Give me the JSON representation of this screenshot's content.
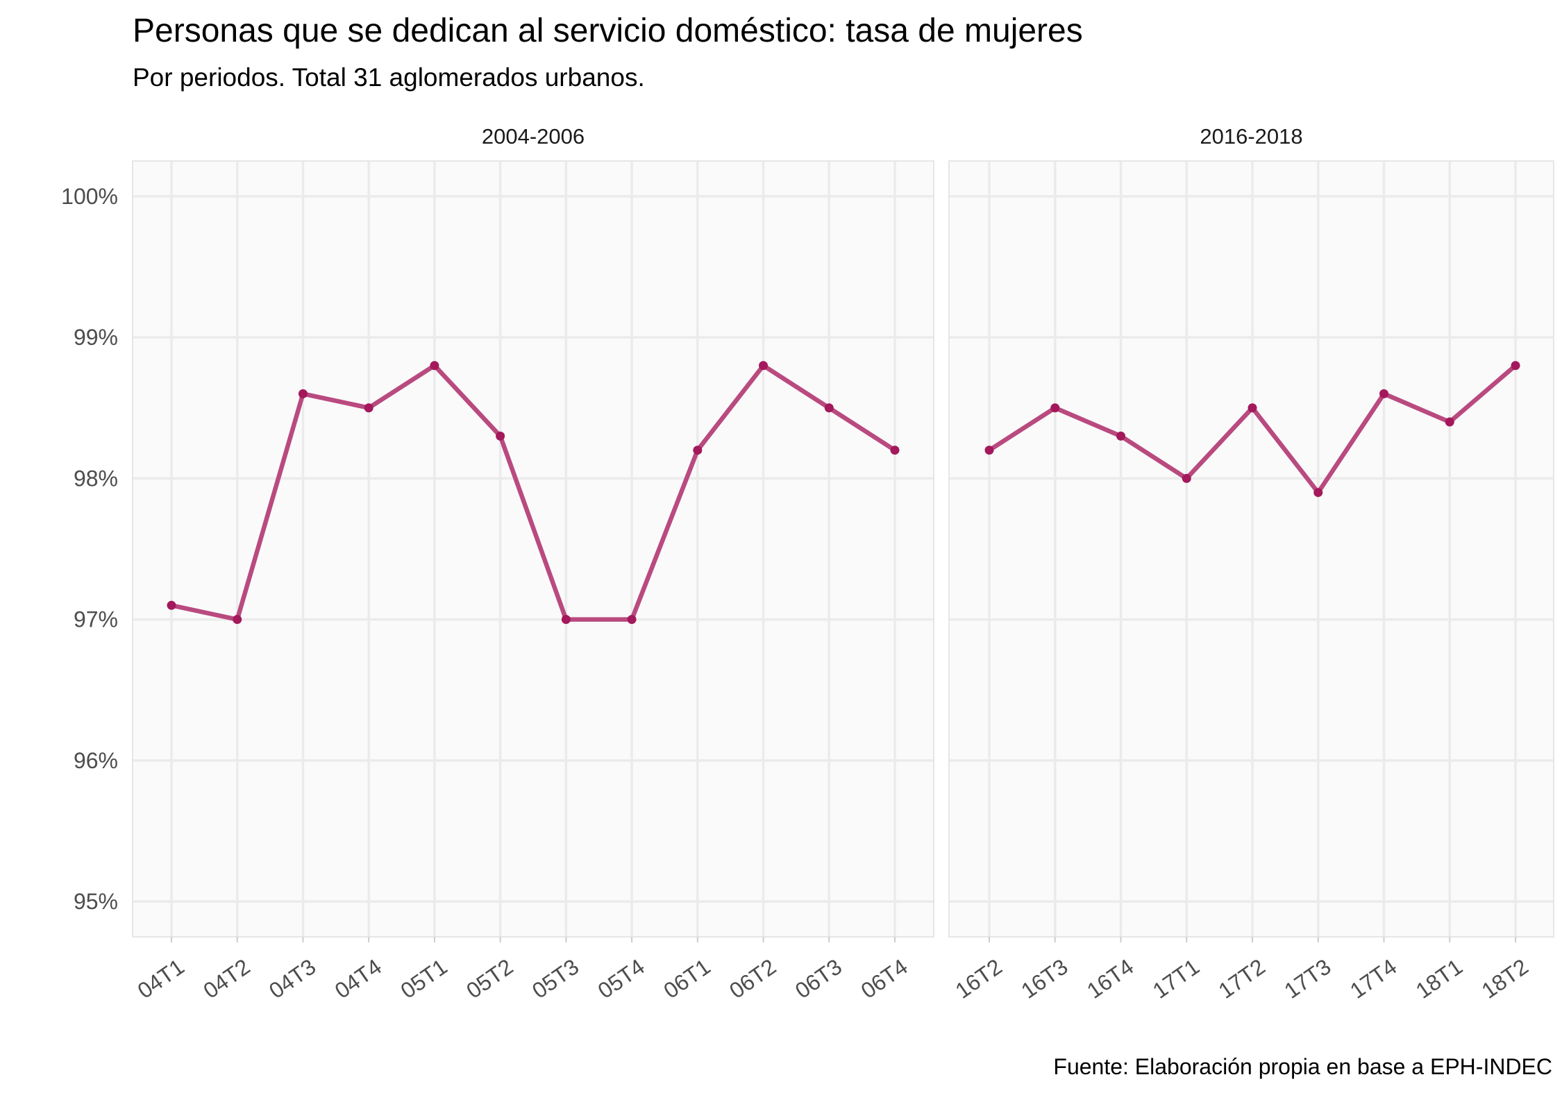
{
  "colors": {
    "line": "#b94a7f",
    "point": "#a3195b"
  },
  "chart_data": {
    "type": "line",
    "title": "Personas que se dedican al servicio doméstico: tasa de mujeres",
    "subtitle": "Por periodos. Total 31 aglomerados urbanos.",
    "caption": "Fuente: Elaboración propia en base a EPH-INDEC",
    "ylabel": "",
    "xlabel": "",
    "ylim": [
      94.75,
      100.25
    ],
    "yticks": [
      95,
      96,
      97,
      98,
      99,
      100
    ],
    "ytick_labels": [
      "95%",
      "96%",
      "97%",
      "98%",
      "99%",
      "100%"
    ],
    "grid": true,
    "legend": "none",
    "panels": [
      {
        "label": "2004-2006",
        "categories": [
          "04T1",
          "04T2",
          "04T3",
          "04T4",
          "05T1",
          "05T2",
          "05T3",
          "05T4",
          "06T1",
          "06T2",
          "06T3",
          "06T4"
        ],
        "values": [
          97.1,
          97.0,
          98.6,
          98.5,
          98.8,
          98.3,
          97.0,
          97.0,
          98.2,
          98.8,
          98.5,
          98.2
        ]
      },
      {
        "label": "2016-2018",
        "categories": [
          "16T2",
          "16T3",
          "16T4",
          "17T1",
          "17T2",
          "17T3",
          "17T4",
          "18T1",
          "18T2"
        ],
        "values": [
          98.2,
          98.5,
          98.3,
          98.0,
          98.5,
          97.9,
          98.6,
          98.4,
          98.8
        ]
      }
    ]
  }
}
